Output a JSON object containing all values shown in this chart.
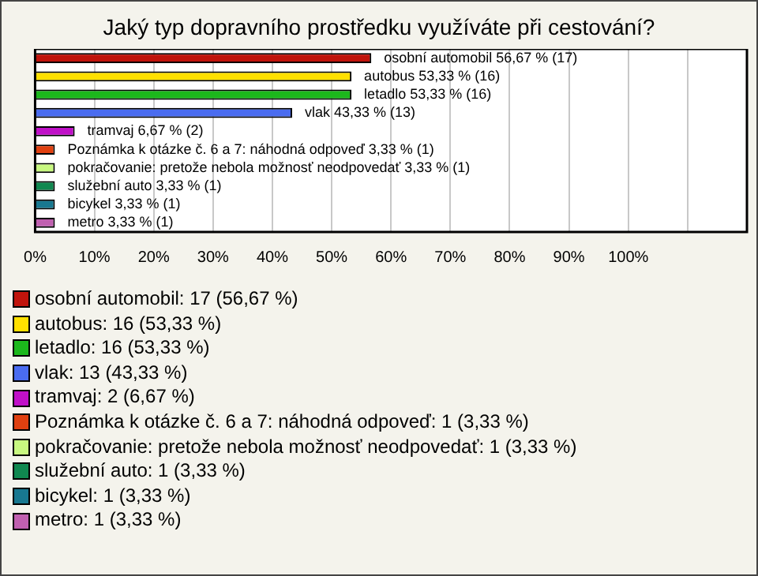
{
  "chart_data": {
    "type": "bar",
    "orientation": "horizontal",
    "stacked": true,
    "title": "Jaký typ dopravního prostředku využíváte při cestování?",
    "categories": [
      null,
      null,
      null,
      null,
      null,
      null,
      null,
      null,
      null,
      null
    ],
    "series": [
      {
        "name": "osobní automobil: 17 (56,67 %)",
        "color": "#c0140c",
        "values": [
          56.67,
          null,
          null,
          null,
          null,
          null,
          null,
          null,
          null,
          null
        ],
        "value_labels": [
          "osobní automobil 56,67 % (17)",
          null,
          null,
          null,
          null,
          null,
          null,
          null,
          null,
          null
        ]
      },
      {
        "name": "autobus: 16 (53,33 %)",
        "color": "#ffe000",
        "values": [
          null,
          53.33,
          null,
          null,
          null,
          null,
          null,
          null,
          null,
          null
        ],
        "value_labels": [
          null,
          "autobus 53,33 % (16)",
          null,
          null,
          null,
          null,
          null,
          null,
          null,
          null
        ]
      },
      {
        "name": "letadlo: 16 (53,33 %)",
        "color": "#1cb81c",
        "values": [
          null,
          null,
          53.33,
          null,
          null,
          null,
          null,
          null,
          null,
          null
        ],
        "value_labels": [
          null,
          null,
          "letadlo 53,33 % (16)",
          null,
          null,
          null,
          null,
          null,
          null,
          null
        ]
      },
      {
        "name": "vlak: 13 (43,33 %)",
        "color": "#4a6cf0",
        "values": [
          null,
          null,
          null,
          43.33,
          null,
          null,
          null,
          null,
          null,
          null
        ],
        "value_labels": [
          null,
          null,
          null,
          "vlak 43,33 % (13)",
          null,
          null,
          null,
          null,
          null,
          null
        ]
      },
      {
        "name": "tramvaj: 2 (6,67 %)",
        "color": "#c010c8",
        "values": [
          null,
          null,
          null,
          null,
          6.67,
          null,
          null,
          null,
          null,
          null
        ],
        "value_labels": [
          null,
          null,
          null,
          null,
          "tramvaj 6,67 % (2)",
          null,
          null,
          null,
          null,
          null
        ]
      },
      {
        "name": "Poznámka k otázke č. 6 a 7: náhodná odpoveď: 1 (3,33 %)",
        "color": "#e04010",
        "values": [
          null,
          null,
          null,
          null,
          null,
          3.33,
          null,
          null,
          null,
          null
        ],
        "value_labels": [
          null,
          null,
          null,
          null,
          null,
          "Poznámka k otázke č. 6 a 7: náhodná odpoveď 3,33 % (1)",
          null,
          null,
          null,
          null
        ]
      },
      {
        "name": "pokračovanie: pretože nebola možnosť neodpovedať: 1 (3,33 %)",
        "color": "#c8f880",
        "values": [
          null,
          null,
          null,
          null,
          null,
          null,
          3.33,
          null,
          null,
          null
        ],
        "value_labels": [
          null,
          null,
          null,
          null,
          null,
          null,
          "pokračovanie: pretože nebola možnosť neodpovedať 3,33 % (1)",
          null,
          null,
          null
        ]
      },
      {
        "name": "služební auto: 1 (3,33 %)",
        "color": "#108850",
        "values": [
          null,
          null,
          null,
          null,
          null,
          null,
          null,
          3.33,
          null,
          null
        ],
        "value_labels": [
          null,
          null,
          null,
          null,
          null,
          null,
          null,
          "služební auto 3,33 % (1)",
          null,
          null
        ]
      },
      {
        "name": "bicykel: 1 (3,33 %)",
        "color": "#187890",
        "values": [
          null,
          null,
          null,
          null,
          null,
          null,
          null,
          null,
          3.33,
          null
        ],
        "value_labels": [
          null,
          null,
          null,
          null,
          null,
          null,
          null,
          null,
          "bicykel 3,33 % (1)",
          null
        ]
      },
      {
        "name": "metro: 1 (3,33 %)",
        "color": "#c060b0",
        "values": [
          null,
          null,
          null,
          null,
          null,
          null,
          null,
          null,
          null,
          3.33
        ],
        "value_labels": [
          null,
          null,
          null,
          null,
          null,
          null,
          null,
          null,
          null,
          "metro 3,33 % (1)"
        ]
      }
    ],
    "xlim": [
      0,
      120
    ],
    "xticks": [
      {
        "value": 0,
        "label": "0%"
      },
      {
        "value": 10,
        "label": "10%"
      },
      {
        "value": 20,
        "label": "20%"
      },
      {
        "value": 30,
        "label": "30%"
      },
      {
        "value": 40,
        "label": "40%"
      },
      {
        "value": 50,
        "label": "50%"
      },
      {
        "value": 60,
        "label": "60%"
      },
      {
        "value": 70,
        "label": "70%"
      },
      {
        "value": 80,
        "label": "80%"
      },
      {
        "value": 90,
        "label": "90%"
      },
      {
        "value": 100,
        "label": "100%"
      },
      {
        "value": 110,
        "label": null
      }
    ],
    "grid": "x",
    "legend": "bottom",
    "tick_labels": "x"
  }
}
